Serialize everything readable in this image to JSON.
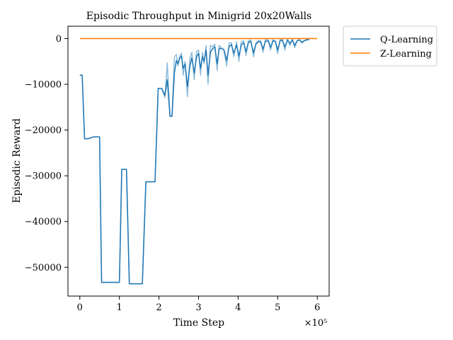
{
  "chart_data": {
    "type": "line",
    "title": "Episodic Throughput in Minigrid 20x20Walls",
    "xlabel": "Time Step",
    "ylabel": "Episodic Reward",
    "x_multiplier_label": "×10⁵",
    "xlim": [
      -0.3,
      6.3
    ],
    "ylim": [
      -56300,
      2700
    ],
    "x_ticks": [
      0,
      1,
      2,
      3,
      4,
      5,
      6
    ],
    "x_tick_labels": [
      "0",
      "1",
      "2",
      "3",
      "4",
      "5",
      "6"
    ],
    "y_ticks": [
      0,
      -10000,
      -20000,
      -30000,
      -40000,
      -50000
    ],
    "y_tick_labels": [
      "0",
      "−10000",
      "−20000",
      "−30000",
      "−40000",
      "−50000"
    ],
    "grid": false,
    "legend_position": "outside-top-right",
    "series": [
      {
        "name": "Q-Learning",
        "color": "#1f77b4",
        "raw_x": [
          0,
          0.06,
          0.12,
          0.2,
          0.34,
          0.45,
          0.5,
          0.55,
          0.7,
          0.85,
          1.0,
          1.06,
          1.12,
          1.18,
          1.25,
          1.3,
          1.37,
          1.43,
          1.5,
          1.58,
          1.67,
          1.76,
          1.83,
          1.9,
          1.98,
          2.07,
          2.15,
          2.21,
          2.28,
          2.33,
          2.39,
          2.44,
          2.48,
          2.52,
          2.57,
          2.61,
          2.66,
          2.72,
          2.78,
          2.83,
          2.89,
          2.95,
          3.0,
          3.05,
          3.1,
          3.14,
          3.19,
          3.24,
          3.3,
          3.35,
          3.41,
          3.47,
          3.52,
          3.58,
          3.64,
          3.71,
          3.77,
          3.83,
          3.89,
          3.96,
          4.02,
          4.08,
          4.14,
          4.2,
          4.26,
          4.32,
          4.39,
          4.45,
          4.51,
          4.57,
          4.63,
          4.69,
          4.76,
          4.82,
          4.88,
          4.94,
          5.0,
          5.06,
          5.12,
          5.18,
          5.25,
          5.31,
          5.37,
          5.43,
          5.49,
          5.55,
          5.61,
          5.67,
          5.73,
          5.8
        ],
        "raw_y": [
          -8000,
          -8000,
          -21900,
          -21900,
          -21500,
          -21500,
          -21500,
          -53300,
          -53300,
          -53300,
          -53300,
          -28600,
          -28600,
          -28600,
          -53600,
          -53600,
          -53600,
          -53600,
          -53600,
          -53600,
          -31300,
          -31300,
          -31300,
          -31300,
          -10900,
          -10900,
          -12900,
          -5300,
          -17000,
          -17000,
          -4000,
          -3500,
          -6000,
          -3800,
          -3200,
          -8000,
          -5000,
          -12700,
          -4500,
          -3000,
          -9000,
          -2800,
          -2500,
          -8000,
          -3000,
          -5500,
          -1500,
          -10000,
          -1500,
          -1800,
          -1200,
          -7000,
          -1500,
          -2000,
          -2500,
          -6000,
          -1000,
          -900,
          -4000,
          -700,
          -5000,
          -700,
          -500,
          -3700,
          -500,
          -300,
          -4000,
          -1000,
          -400,
          -500,
          -3000,
          -200,
          -300,
          -2500,
          -250,
          -600,
          -3300,
          -200,
          -200,
          -2500,
          -100,
          -1500,
          -100,
          -2000,
          -500,
          -200,
          -1000,
          -500,
          -200,
          -100
        ],
        "smooth_x": [
          0,
          0.06,
          0.12,
          0.2,
          0.34,
          0.45,
          0.5,
          0.55,
          0.7,
          0.85,
          1.0,
          1.06,
          1.12,
          1.18,
          1.25,
          1.3,
          1.37,
          1.43,
          1.5,
          1.58,
          1.67,
          1.76,
          1.83,
          1.9,
          1.98,
          2.07,
          2.15,
          2.21,
          2.28,
          2.33,
          2.39,
          2.44,
          2.48,
          2.52,
          2.57,
          2.61,
          2.66,
          2.72,
          2.78,
          2.83,
          2.89,
          2.95,
          3.0,
          3.05,
          3.1,
          3.14,
          3.19,
          3.24,
          3.3,
          3.35,
          3.41,
          3.47,
          3.52,
          3.58,
          3.64,
          3.71,
          3.77,
          3.83,
          3.89,
          3.96,
          4.02,
          4.08,
          4.14,
          4.2,
          4.26,
          4.32,
          4.39,
          4.45,
          4.51,
          4.57,
          4.63,
          4.69,
          4.76,
          4.82,
          4.88,
          4.94,
          5.0,
          5.06,
          5.12,
          5.18,
          5.25,
          5.31,
          5.37,
          5.43,
          5.49,
          5.55,
          5.61,
          5.67,
          5.73,
          5.8
        ],
        "smooth_y": [
          -8000,
          -8000,
          -21900,
          -21900,
          -21500,
          -21500,
          -21500,
          -53300,
          -53300,
          -53300,
          -53300,
          -28600,
          -28600,
          -28600,
          -53600,
          -53600,
          -53600,
          -53600,
          -53600,
          -53600,
          -31300,
          -31300,
          -31300,
          -31300,
          -10900,
          -10900,
          -12400,
          -9000,
          -17000,
          -17000,
          -7500,
          -4800,
          -5500,
          -4400,
          -3800,
          -6500,
          -5500,
          -10500,
          -6000,
          -4200,
          -7500,
          -4000,
          -3200,
          -6500,
          -4000,
          -5000,
          -2500,
          -8000,
          -3000,
          -2300,
          -1800,
          -5500,
          -2200,
          -2200,
          -2400,
          -4800,
          -1800,
          -1300,
          -3200,
          -1400,
          -3800,
          -1400,
          -900,
          -2900,
          -900,
          -600,
          -3100,
          -1200,
          -700,
          -700,
          -2300,
          -600,
          -500,
          -1900,
          -500,
          -600,
          -2500,
          -500,
          -400,
          -1800,
          -300,
          -1100,
          -300,
          -1500,
          -500,
          -300,
          -800,
          -500,
          -300,
          -200
        ]
      },
      {
        "name": "Z-Learning",
        "color": "#ff7f0e",
        "x": [
          0,
          6.0
        ],
        "y": [
          0,
          0
        ]
      }
    ]
  }
}
